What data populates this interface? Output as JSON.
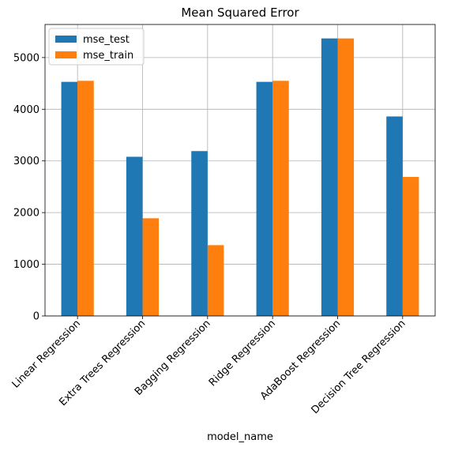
{
  "chart_data": {
    "type": "bar",
    "title": "Mean Squared Error",
    "xlabel": "model_name",
    "ylabel": "",
    "categories": [
      "Linear Regression",
      "Extra Trees Regression",
      "Bagging Regression",
      "Ridge Regression",
      "AdaBoost Regression",
      "Decision Tree Regression"
    ],
    "series": [
      {
        "name": "mse_test",
        "color": "#1f77b4",
        "values": [
          4530,
          3080,
          3190,
          4530,
          5370,
          3860
        ]
      },
      {
        "name": "mse_train",
        "color": "#ff7f0e",
        "values": [
          4550,
          1890,
          1370,
          4550,
          5370,
          2690
        ]
      }
    ],
    "ylim": [
      0,
      5640
    ],
    "yticks": [
      0,
      1000,
      2000,
      3000,
      4000,
      5000
    ],
    "grid": true,
    "legend_position": "top-left"
  }
}
